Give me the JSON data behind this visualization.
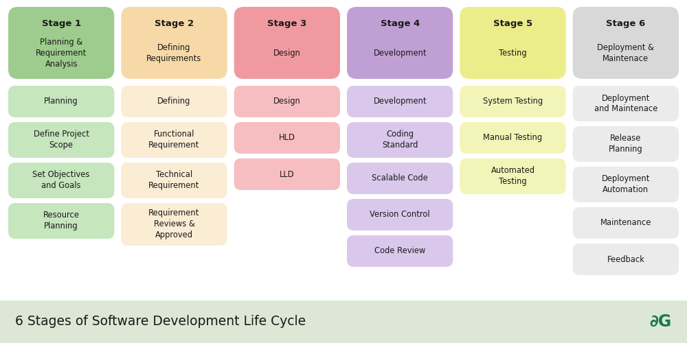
{
  "background_color": "#ffffff",
  "footer_color": "#dce8d5",
  "title": "6 Stages of Software Development Life Cycle",
  "title_color": "#1a1a1a",
  "title_fontsize": 13.5,
  "logo_text": "∂G",
  "logo_color": "#1a7a4a",
  "stages": [
    {
      "label": "Stage 1",
      "sublabel": "Planning &\nRequirement\nAnalysis",
      "header_color": "#9dcc8e",
      "item_color": "#c6e6be",
      "items": [
        "Planning",
        "Define Project\nScope",
        "Set Objectives\nand Goals",
        "Resource\nPlanning"
      ]
    },
    {
      "label": "Stage 2",
      "sublabel": "Defining\nRequirements",
      "header_color": "#f7d9a8",
      "item_color": "#fbecd4",
      "items": [
        "Defining",
        "Functional\nRequirement",
        "Technical\nRequirement",
        "Requirement\nReviews &\nApproved"
      ]
    },
    {
      "label": "Stage 3",
      "sublabel": "Design",
      "header_color": "#f09aa0",
      "item_color": "#f7bec2",
      "items": [
        "Design",
        "HLD",
        "LLD"
      ]
    },
    {
      "label": "Stage 4",
      "sublabel": "Development",
      "header_color": "#c0a0d4",
      "item_color": "#dac8ec",
      "items": [
        "Development",
        "Coding\nStandard",
        "Scalable Code",
        "Version Control",
        "Code Review"
      ]
    },
    {
      "label": "Stage 5",
      "sublabel": "Testing",
      "header_color": "#eaed8a",
      "item_color": "#f3f5b8",
      "items": [
        "System Testing",
        "Manual Testing",
        "Automated\nTesting"
      ]
    },
    {
      "label": "Stage 6",
      "sublabel": "Deployment &\nMaintenace",
      "header_color": "#d8d8d8",
      "item_color": "#ebebeb",
      "items": [
        "Deployment\nand Maintenace",
        "Release\nPlanning",
        "Deployment\nAutomation",
        "Maintenance",
        "Feedback"
      ]
    }
  ]
}
